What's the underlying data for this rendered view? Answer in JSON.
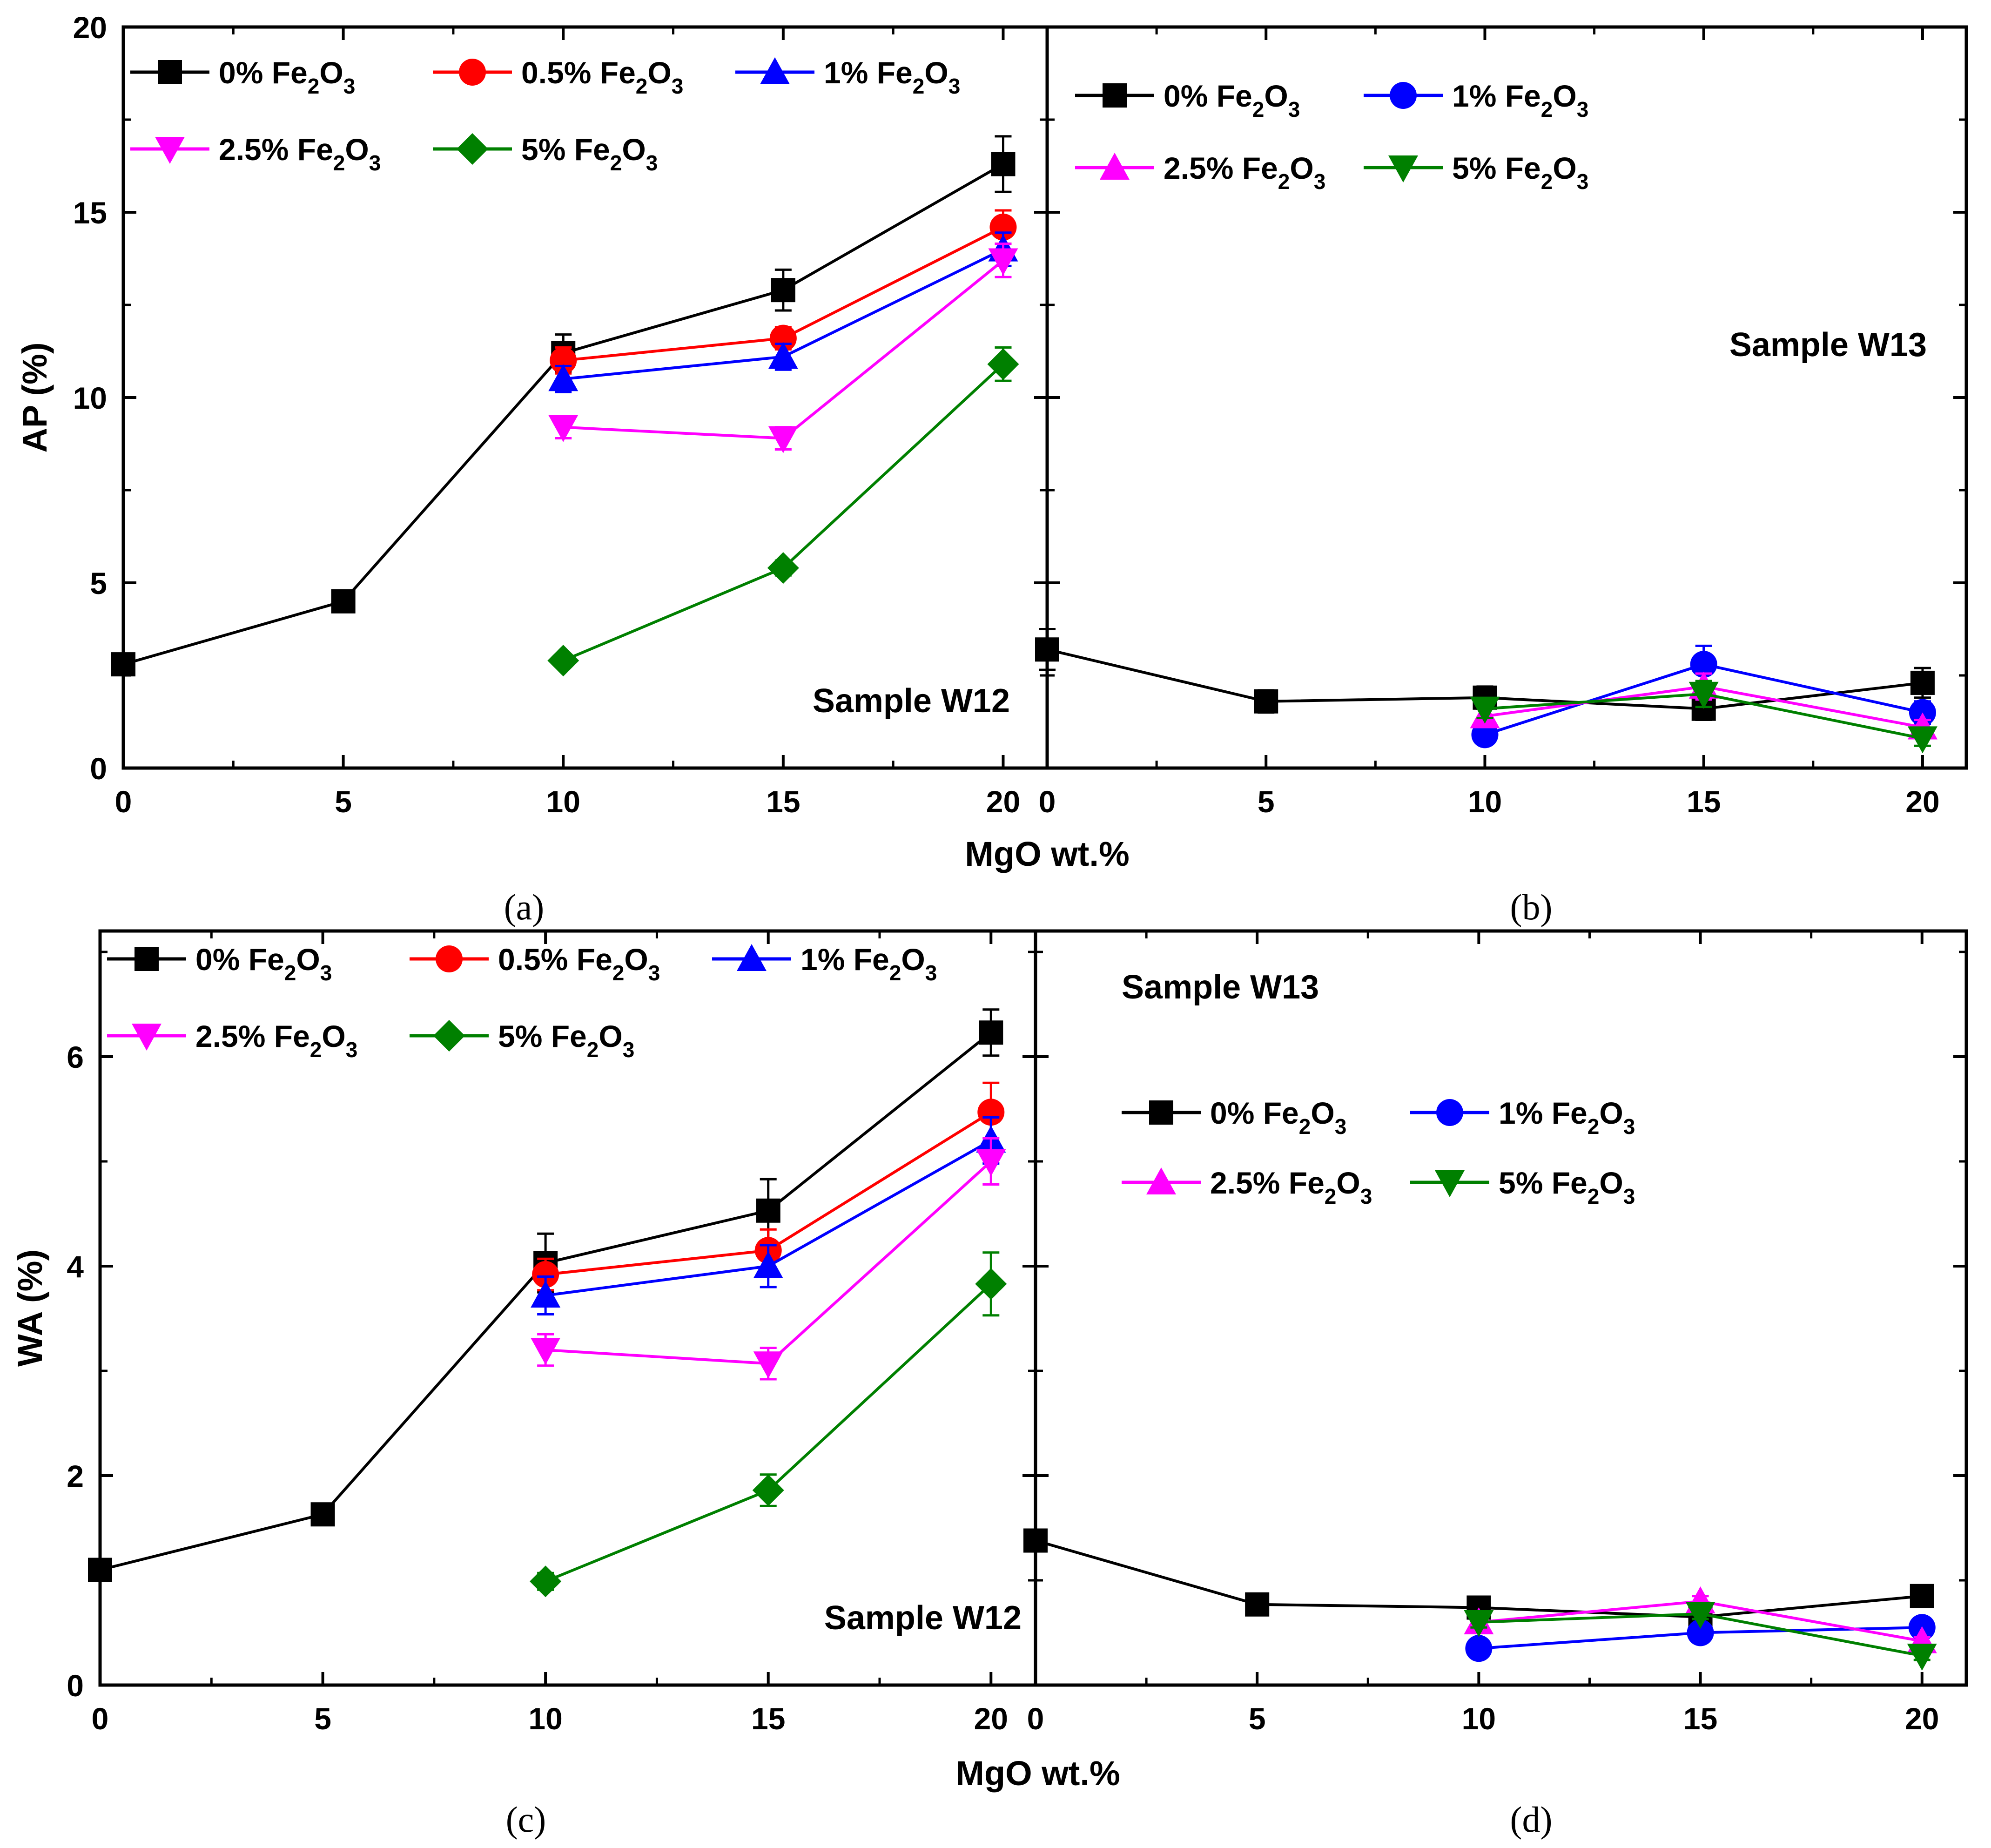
{
  "x_axis_label": "MgO wt.%",
  "chart_data": [
    {
      "type": "line",
      "panel_label": "(a)",
      "ylabel": "AP (%)",
      "annotation": "Sample W12",
      "xlim": [
        0,
        21
      ],
      "ylim": [
        0,
        20
      ],
      "xticks": [
        0,
        5,
        10,
        15,
        20
      ],
      "yticks": [
        0,
        5,
        10,
        15,
        20
      ],
      "series": [
        {
          "name": "0% Fe2O3",
          "color": "#000000",
          "marker": "square",
          "x": [
            0,
            5,
            10,
            15,
            20
          ],
          "y": [
            2.8,
            4.5,
            11.2,
            12.9,
            16.3
          ],
          "err": [
            0.15,
            0.15,
            0.5,
            0.55,
            0.75
          ]
        },
        {
          "name": "0.5% Fe2O3",
          "color": "#ff0000",
          "marker": "circle",
          "x": [
            10,
            15,
            20
          ],
          "y": [
            11.0,
            11.6,
            14.6
          ],
          "err": [
            0.35,
            0.3,
            0.45
          ]
        },
        {
          "name": "1% Fe2O3",
          "color": "#0000ff",
          "marker": "triangle-up",
          "x": [
            10,
            15,
            20
          ],
          "y": [
            10.5,
            11.1,
            14.0
          ],
          "err": [
            0.35,
            0.35,
            0.45
          ]
        },
        {
          "name": "2.5% Fe2O3",
          "color": "#ff00ff",
          "marker": "triangle-down",
          "x": [
            10,
            15,
            20
          ],
          "y": [
            9.2,
            8.9,
            13.7
          ],
          "err": [
            0.3,
            0.3,
            0.45
          ]
        },
        {
          "name": "5% Fe2O3",
          "color": "#008000",
          "marker": "diamond",
          "x": [
            10,
            15,
            20
          ],
          "y": [
            2.9,
            5.4,
            10.9
          ],
          "err": [
            0.15,
            0.2,
            0.45
          ]
        }
      ]
    },
    {
      "type": "line",
      "panel_label": "(b)",
      "annotation": "Sample W13",
      "xlim": [
        0,
        21
      ],
      "ylim": [
        0,
        20
      ],
      "xticks": [
        0,
        5,
        10,
        15,
        20
      ],
      "yticks": [
        0,
        5,
        10,
        15,
        20
      ],
      "series": [
        {
          "name": "0% Fe2O3",
          "color": "#000000",
          "marker": "square",
          "x": [
            0,
            5,
            10,
            15,
            20
          ],
          "y": [
            3.2,
            1.8,
            1.9,
            1.6,
            2.3
          ],
          "err": [
            0.55,
            0.3,
            0.3,
            0.3,
            0.4
          ]
        },
        {
          "name": "1% Fe2O3",
          "color": "#0000ff",
          "marker": "circle",
          "x": [
            10,
            15,
            20
          ],
          "y": [
            0.9,
            2.8,
            1.5
          ],
          "err": [
            0.2,
            0.5,
            0.3
          ]
        },
        {
          "name": "2.5% Fe2O3",
          "color": "#ff00ff",
          "marker": "triangle-up",
          "x": [
            10,
            15,
            20
          ],
          "y": [
            1.4,
            2.2,
            1.1
          ],
          "err": [
            0.25,
            0.35,
            0.2
          ]
        },
        {
          "name": "5% Fe2O3",
          "color": "#008000",
          "marker": "triangle-down",
          "x": [
            10,
            15,
            20
          ],
          "y": [
            1.6,
            2.0,
            0.8
          ],
          "err": [
            0.25,
            0.35,
            0.2
          ]
        }
      ]
    },
    {
      "type": "line",
      "panel_label": "(c)",
      "ylabel": "WA (%)",
      "annotation": "Sample W12",
      "xlim": [
        0,
        21
      ],
      "ylim": [
        0,
        7.2
      ],
      "xticks": [
        0,
        5,
        10,
        15,
        20
      ],
      "yticks": [
        0,
        2,
        4,
        6
      ],
      "series": [
        {
          "name": "0% Fe2O3",
          "color": "#000000",
          "marker": "square",
          "x": [
            0,
            5,
            10,
            15,
            20
          ],
          "y": [
            1.1,
            1.63,
            4.03,
            4.53,
            6.23
          ],
          "err": [
            0.08,
            0.1,
            0.28,
            0.3,
            0.22
          ]
        },
        {
          "name": "0.5% Fe2O3",
          "color": "#ff0000",
          "marker": "circle",
          "x": [
            10,
            15,
            20
          ],
          "y": [
            3.92,
            4.15,
            5.47
          ],
          "err": [
            0.15,
            0.2,
            0.28
          ]
        },
        {
          "name": "1% Fe2O3",
          "color": "#0000ff",
          "marker": "triangle-up",
          "x": [
            10,
            15,
            20
          ],
          "y": [
            3.72,
            4.0,
            5.2
          ],
          "err": [
            0.18,
            0.2,
            0.22
          ]
        },
        {
          "name": "2.5% Fe2O3",
          "color": "#ff00ff",
          "marker": "triangle-down",
          "x": [
            10,
            15,
            20
          ],
          "y": [
            3.2,
            3.07,
            5.0
          ],
          "err": [
            0.15,
            0.15,
            0.22
          ]
        },
        {
          "name": "5% Fe2O3",
          "color": "#008000",
          "marker": "diamond",
          "x": [
            10,
            15,
            20
          ],
          "y": [
            0.99,
            1.86,
            3.83
          ],
          "err": [
            0.08,
            0.15,
            0.3
          ]
        }
      ]
    },
    {
      "type": "line",
      "panel_label": "(d)",
      "annotation": "Sample W13",
      "xlim": [
        0,
        21
      ],
      "ylim": [
        0,
        7.2
      ],
      "xticks": [
        0,
        5,
        10,
        15,
        20
      ],
      "yticks": [
        0,
        2,
        4,
        6
      ],
      "series": [
        {
          "name": "0% Fe2O3",
          "color": "#000000",
          "marker": "square",
          "x": [
            0,
            5,
            10,
            15,
            20
          ],
          "y": [
            1.38,
            0.77,
            0.74,
            0.65,
            0.85
          ],
          "err": [
            0.1,
            0.05,
            0.05,
            0.05,
            0.05
          ]
        },
        {
          "name": "1% Fe2O3",
          "color": "#0000ff",
          "marker": "circle",
          "x": [
            10,
            15,
            20
          ],
          "y": [
            0.35,
            0.5,
            0.55
          ],
          "err": [
            0.03,
            0.03,
            0.03
          ]
        },
        {
          "name": "2.5% Fe2O3",
          "color": "#ff00ff",
          "marker": "triangle-up",
          "x": [
            10,
            15,
            20
          ],
          "y": [
            0.6,
            0.8,
            0.42
          ],
          "err": [
            0.05,
            0.05,
            0.04
          ]
        },
        {
          "name": "5% Fe2O3",
          "color": "#008000",
          "marker": "triangle-down",
          "x": [
            10,
            15,
            20
          ],
          "y": [
            0.6,
            0.68,
            0.28
          ],
          "err": [
            0.05,
            0.05,
            0.04
          ]
        }
      ]
    }
  ]
}
